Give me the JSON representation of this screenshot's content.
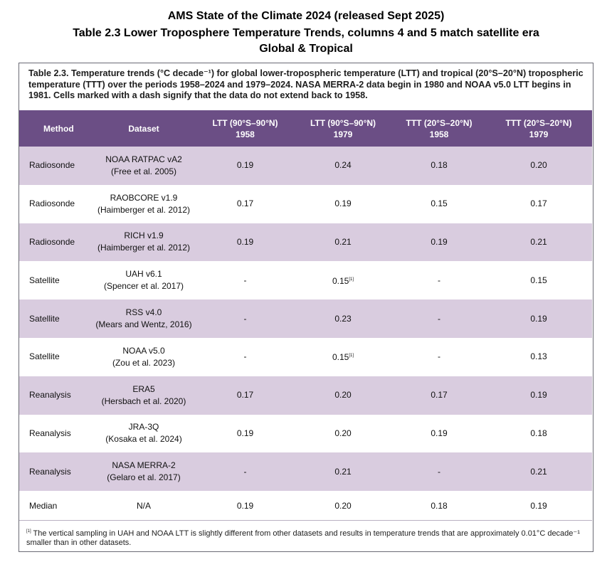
{
  "headline": {
    "line1": "AMS State of the Climate 2024 (released Sept 2025)",
    "line2": "Table 2.3 Lower Troposphere Temperature Trends, columns 4 and 5 match satellite era",
    "line3": "Global & Tropical"
  },
  "caption": "Table 2.3. Temperature trends (°C decade⁻¹) for global lower-tropospheric temperature (LTT) and tropical (20°S–20°N) tropospheric temperature (TTT) over the periods 1958–2024 and 1979–2024. NASA MERRA-2 data begin in 1980 and NOAA v5.0 LTT begins in 1981. Cells marked with a dash signify that the data do not extend back to 1958.",
  "columns": {
    "method": "Method",
    "dataset": "Dataset",
    "ltt1958": {
      "line1": "LTT (90°S–90°N)",
      "line2": "1958"
    },
    "ltt1979": {
      "line1": "LTT (90°S–90°N)",
      "line2": "1979"
    },
    "ttt1958": {
      "line1": "TTT (20°S–20°N)",
      "line2": "1958"
    },
    "ttt1979": {
      "line1": "TTT (20°S–20°N)",
      "line2": "1979"
    }
  },
  "rows": [
    {
      "method": "Radiosonde",
      "dataset": "NOAA RATPAC vA2",
      "citation": "(Free et al. 2005)",
      "ltt1958": "0.19",
      "ltt1979": "0.24",
      "ltt1979_note": "",
      "ttt1958": "0.18",
      "ttt1979": "0.20"
    },
    {
      "method": "Radiosonde",
      "dataset": "RAOBCORE v1.9",
      "citation": "(Haimberger et al. 2012)",
      "ltt1958": "0.17",
      "ltt1979": "0.19",
      "ltt1979_note": "",
      "ttt1958": "0.15",
      "ttt1979": "0.17"
    },
    {
      "method": "Radiosonde",
      "dataset": "RICH v1.9",
      "citation": "(Haimberger et al. 2012)",
      "ltt1958": "0.19",
      "ltt1979": "0.21",
      "ltt1979_note": "",
      "ttt1958": "0.19",
      "ttt1979": "0.21"
    },
    {
      "method": "Satellite",
      "dataset": "UAH v6.1",
      "citation": "(Spencer et al. 2017)",
      "ltt1958": "-",
      "ltt1979": "0.15",
      "ltt1979_note": "[1]",
      "ttt1958": "-",
      "ttt1979": "0.15"
    },
    {
      "method": "Satellite",
      "dataset": "RSS v4.0",
      "citation": "(Mears and Wentz, 2016)",
      "ltt1958": "-",
      "ltt1979": "0.23",
      "ltt1979_note": "",
      "ttt1958": "-",
      "ttt1979": "0.19"
    },
    {
      "method": "Satellite",
      "dataset": "NOAA v5.0",
      "citation": "(Zou et al. 2023)",
      "ltt1958": "-",
      "ltt1979": "0.15",
      "ltt1979_note": "[1]",
      "ttt1958": "-",
      "ttt1979": "0.13"
    },
    {
      "method": "Reanalysis",
      "dataset": "ERA5",
      "citation": "(Hersbach et al. 2020)",
      "ltt1958": "0.17",
      "ltt1979": "0.20",
      "ltt1979_note": "",
      "ttt1958": "0.17",
      "ttt1979": "0.19"
    },
    {
      "method": "Reanalysis",
      "dataset": "JRA-3Q",
      "citation": "(Kosaka et al. 2024)",
      "ltt1958": "0.19",
      "ltt1979": "0.20",
      "ltt1979_note": "",
      "ttt1958": "0.19",
      "ttt1979": "0.18"
    },
    {
      "method": "Reanalysis",
      "dataset": "NASA MERRA-2",
      "citation": "(Gelaro et al. 2017)",
      "ltt1958": "-",
      "ltt1979": "0.21",
      "ltt1979_note": "",
      "ttt1958": "-",
      "ttt1979": "0.21"
    }
  ],
  "median": {
    "method": "Median",
    "dataset": "N/A",
    "ltt1958": "0.19",
    "ltt1979": "0.20",
    "ttt1958": "0.18",
    "ttt1979": "0.19"
  },
  "footnote": {
    "marker": "[1]",
    "text": " The vertical sampling in UAH and NOAA LTT is slightly different from other datasets and results in temperature trends that are approximately 0.01°C decade⁻¹ smaller than in other datasets."
  },
  "colors": {
    "header_bg": "#6b4e85",
    "shaded_row": "#d9ccdf",
    "border": "#6a6a74"
  }
}
